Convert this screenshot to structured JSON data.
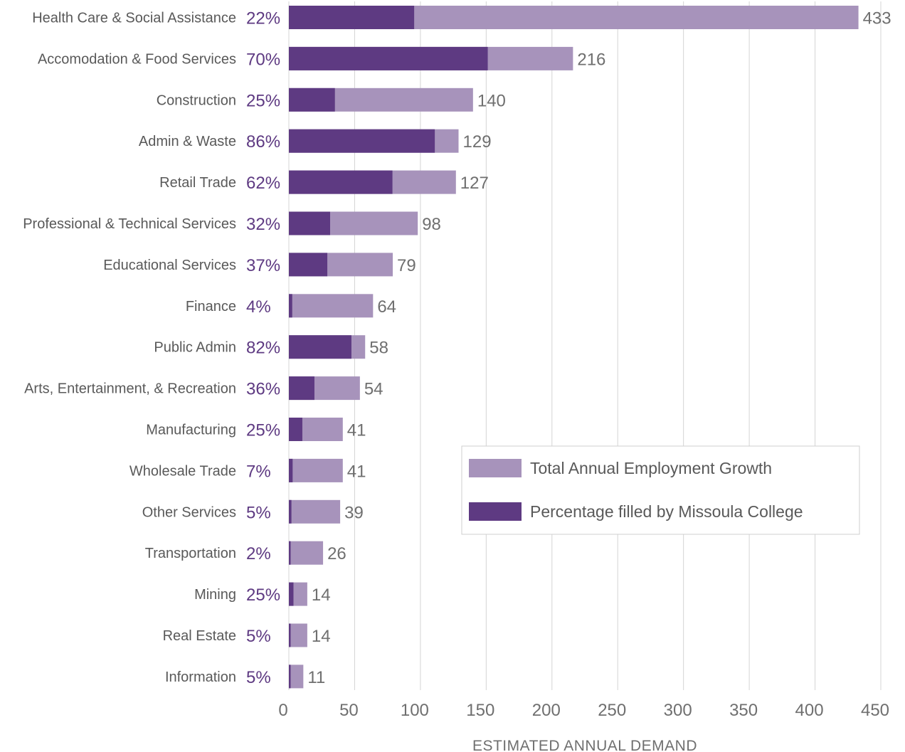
{
  "chart_data": {
    "type": "bar",
    "orientation": "horizontal",
    "categories": [
      "Health Care & Social Assistance",
      "Accomodation & Food Services",
      "Construction",
      "Admin & Waste",
      "Retail Trade",
      "Professional & Technical Services",
      "Educational Services",
      "Finance",
      "Public Admin",
      "Arts, Entertainment, & Recreation",
      "Manufacturing",
      "Wholesale Trade",
      "Other Services",
      "Transportation",
      "Mining",
      "Real Estate",
      "Information"
    ],
    "series": [
      {
        "name": "Total Annual Employment Growth",
        "values": [
          433,
          216,
          140,
          129,
          127,
          98,
          79,
          64,
          58,
          54,
          41,
          41,
          39,
          26,
          14,
          14,
          11
        ]
      },
      {
        "name": "Percentage filled by Missoula College",
        "values": [
          22,
          70,
          25,
          86,
          62,
          32,
          37,
          4,
          82,
          36,
          25,
          7,
          5,
          2,
          25,
          5,
          5
        ],
        "unit": "%"
      }
    ],
    "percent_labels": [
      "22%",
      "70%",
      "25%",
      "86%",
      "62%",
      "32%",
      "37%",
      "4%",
      "82%",
      "36%",
      "25%",
      "7%",
      "5%",
      "2%",
      "25%",
      "5%",
      "5%"
    ],
    "value_labels": [
      "433",
      "216",
      "140",
      "129",
      "127",
      "98",
      "79",
      "64",
      "58",
      "54",
      "41",
      "41",
      "39",
      "26",
      "14",
      "14",
      "11"
    ],
    "xlabel": "ESTIMATED ANNUAL DEMAND",
    "xlim": [
      0,
      450
    ],
    "x_ticks": [
      0,
      50,
      100,
      150,
      200,
      250,
      300,
      350,
      400,
      450
    ],
    "x_tick_labels": [
      "0",
      "50",
      "100",
      "150",
      "200",
      "250",
      "300",
      "350",
      "400",
      "450"
    ],
    "grid": "vertical",
    "legend_position": "lower-right",
    "colors": {
      "total": "#a793bb",
      "filled": "#5e3a82",
      "percent_text": "#5e3a82",
      "value_text": "#6f6f6f",
      "label_text": "#595959",
      "grid": "#d4d4d4"
    }
  }
}
